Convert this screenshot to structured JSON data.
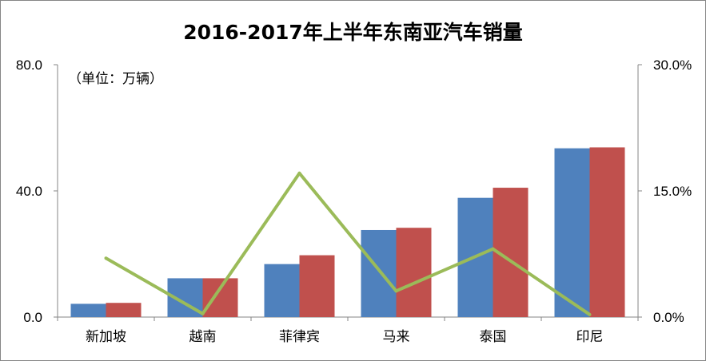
{
  "title": "2016-2017年上半年东南亚汽车销量",
  "unit_note": "（单位：万辆）",
  "chart_data": {
    "type": "bar",
    "title": "2016-2017年上半年东南亚汽车销量",
    "categories": [
      "新加坡",
      "越南",
      "菲律宾",
      "马来",
      "泰国",
      "印尼"
    ],
    "series": [
      {
        "type": "bar",
        "axis": "left",
        "color": "#4f81bd",
        "values": [
          4.2,
          12.3,
          16.8,
          27.6,
          37.8,
          53.5
        ]
      },
      {
        "type": "bar",
        "axis": "left",
        "color": "#c0504d",
        "values": [
          4.5,
          12.3,
          19.6,
          28.3,
          41.0,
          53.8
        ]
      },
      {
        "type": "line",
        "axis": "right",
        "color": "#9bbb59",
        "values": [
          7.0,
          0.4,
          17.1,
          3.1,
          8.1,
          0.3
        ]
      }
    ],
    "y_left": {
      "min": 0,
      "max": 80,
      "ticks": [
        0,
        40,
        80
      ],
      "tick_labels": [
        "0.0",
        "40.0",
        "80.0"
      ]
    },
    "y_right": {
      "min": 0,
      "max": 30,
      "ticks": [
        0,
        15,
        30
      ],
      "tick_labels": [
        "0.0%",
        "15.0%",
        "30.0%"
      ]
    },
    "grid": false,
    "legend": "none"
  }
}
